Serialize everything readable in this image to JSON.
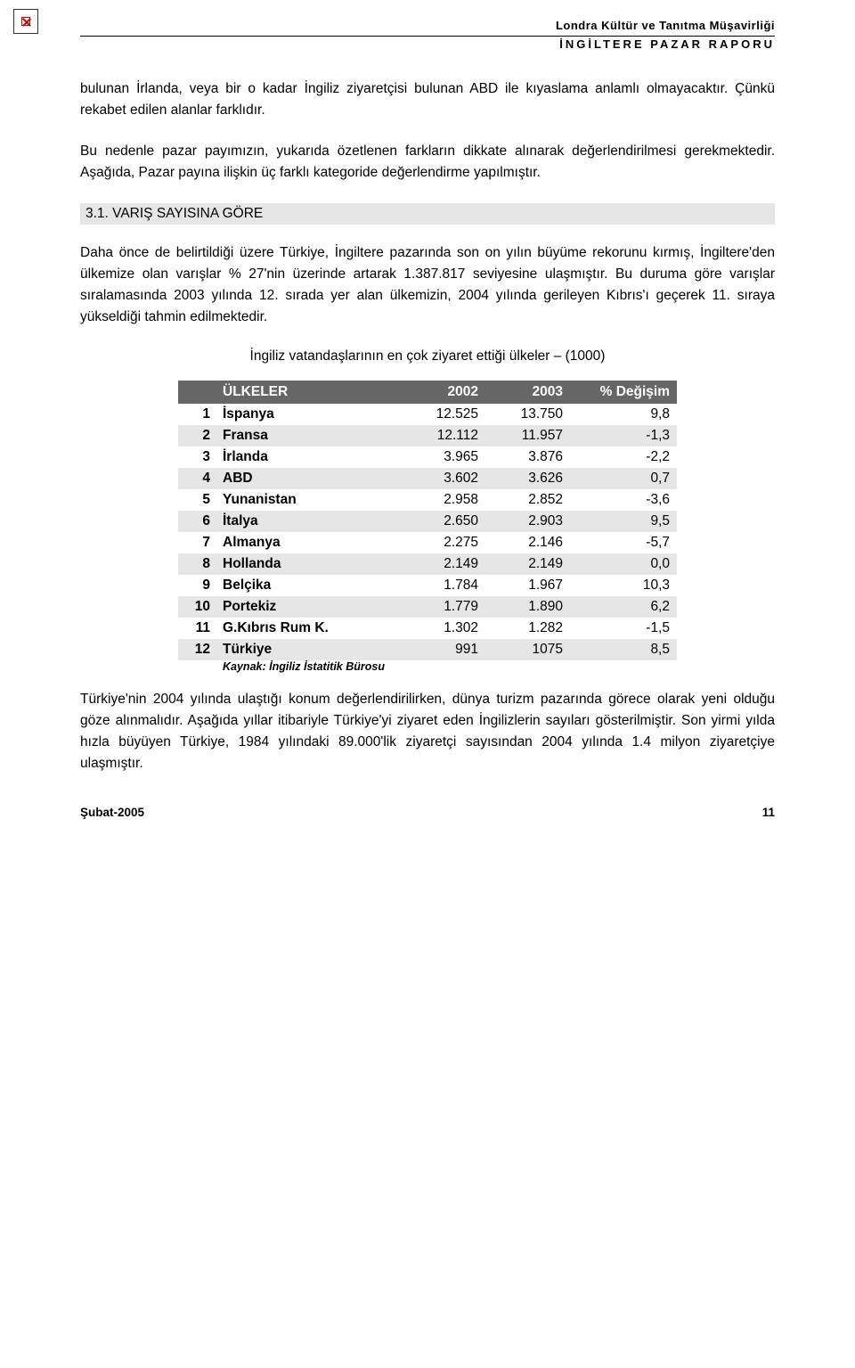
{
  "header": {
    "org": "Londra Kültür ve Tanıtma Müşavirliği",
    "report": "İNGİLTERE PAZAR RAPORU"
  },
  "para1": "bulunan İrlanda, veya bir o kadar İngiliz ziyaretçisi bulunan ABD ile kıyaslama anlamlı olmayacaktır. Çünkü rekabet edilen alanlar farklıdır.",
  "para2": "Bu nedenle pazar payımızın, yukarıda özetlenen farkların dikkate alınarak değerlendirilmesi gerekmektedir. Aşağıda, Pazar payına ilişkin üç farklı kategoride değerlendirme yapılmıştır.",
  "section_heading": "3.1. VARIŞ SAYISINA GÖRE",
  "para3": "Daha önce de belirtildiği üzere Türkiye, İngiltere pazarında son on yılın büyüme rekorunu kırmış, İngiltere'den ülkemize olan varışlar % 27'nin üzerinde artarak 1.387.817 seviyesine ulaşmıştır. Bu duruma göre varışlar sıralamasında 2003 yılında 12. sırada yer alan ülkemizin, 2004 yılında gerileyen Kıbrıs'ı geçerek 11. sıraya yükseldiği tahmin edilmektedir.",
  "table_title": "İngiliz vatandaşlarının en çok ziyaret ettiği ülkeler – (1000)",
  "table": {
    "columns": [
      "ÜLKELER",
      "2002",
      "2003",
      "% Değişim"
    ],
    "rows": [
      {
        "rank": "1",
        "country": "İspanya",
        "y2002": "12.525",
        "y2003": "13.750",
        "change": "9,8"
      },
      {
        "rank": "2",
        "country": "Fransa",
        "y2002": "12.112",
        "y2003": "11.957",
        "change": "-1,3"
      },
      {
        "rank": "3",
        "country": "İrlanda",
        "y2002": "3.965",
        "y2003": "3.876",
        "change": "-2,2"
      },
      {
        "rank": "4",
        "country": "ABD",
        "y2002": "3.602",
        "y2003": "3.626",
        "change": "0,7"
      },
      {
        "rank": "5",
        "country": "Yunanistan",
        "y2002": "2.958",
        "y2003": "2.852",
        "change": "-3,6"
      },
      {
        "rank": "6",
        "country": "İtalya",
        "y2002": "2.650",
        "y2003": "2.903",
        "change": "9,5"
      },
      {
        "rank": "7",
        "country": "Almanya",
        "y2002": "2.275",
        "y2003": "2.146",
        "change": "-5,7"
      },
      {
        "rank": "8",
        "country": "Hollanda",
        "y2002": "2.149",
        "y2003": "2.149",
        "change": "0,0"
      },
      {
        "rank": "9",
        "country": "Belçika",
        "y2002": "1.784",
        "y2003": "1.967",
        "change": "10,3"
      },
      {
        "rank": "10",
        "country": "Portekiz",
        "y2002": "1.779",
        "y2003": "1.890",
        "change": "6,2"
      },
      {
        "rank": "11",
        "country": "G.Kıbrıs Rum K.",
        "y2002": "1.302",
        "y2003": "1.282",
        "change": "-1,5"
      },
      {
        "rank": "12",
        "country": "Türkiye",
        "y2002": "991",
        "y2003": "1075",
        "change": "8,5"
      }
    ],
    "source": "Kaynak: İngiliz İstatitik Bürosu"
  },
  "para4": "Türkiye'nin 2004 yılında ulaştığı konum değerlendirilirken, dünya turizm pazarında görece olarak yeni olduğu göze alınmalıdır. Aşağıda yıllar itibariyle Türkiye'yi ziyaret eden İngilizlerin sayıları gösterilmiştir. Son yirmi yılda hızla büyüyen Türkiye, 1984 yılındaki 89.000'lik ziyaretçi sayısından 2004 yılında 1.4 milyon ziyaretçiye ulaşmıştır.",
  "footer": {
    "date": "Şubat-2005",
    "page": "11"
  }
}
